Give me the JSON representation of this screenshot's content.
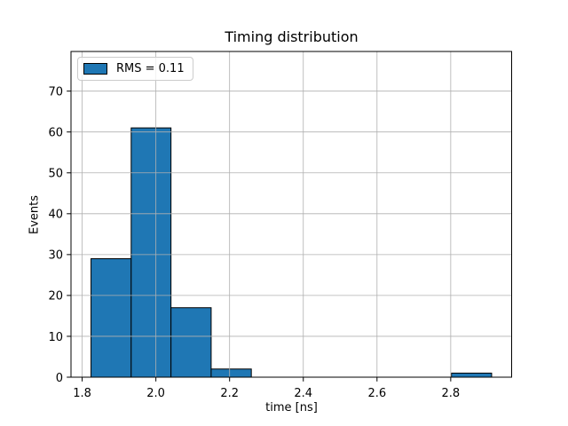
{
  "figure": {
    "background": "#ffffff"
  },
  "chart_data": {
    "type": "bar",
    "subtype": "histogram",
    "title": "Timing distribution",
    "xlabel": "time [ns]",
    "ylabel": "Events",
    "bin_edges": [
      1.824,
      1.933,
      2.041,
      2.15,
      2.259,
      2.368,
      2.476,
      2.585,
      2.694,
      2.802,
      2.911
    ],
    "counts": [
      29,
      61,
      17,
      2,
      0,
      0,
      0,
      0,
      0,
      1
    ],
    "xticks": [
      1.8,
      2.0,
      2.2,
      2.4,
      2.6,
      2.8
    ],
    "xtick_labels": [
      "1.8",
      "2.0",
      "2.2",
      "2.4",
      "2.6",
      "2.8"
    ],
    "yticks": [
      0,
      10,
      20,
      30,
      40,
      50,
      60,
      70
    ],
    "ytick_labels": [
      "0",
      "10",
      "20",
      "30",
      "40",
      "50",
      "60",
      "70"
    ],
    "xlim": [
      1.7697,
      2.9653
    ],
    "ylim": [
      0,
      79.7
    ],
    "grid": true,
    "grid_over_bars": true,
    "grid_color": "#b0b0b0",
    "bar_color": "#1f77b4",
    "bar_edge_color": "#000000",
    "spine_color": "#000000",
    "legend": {
      "label": "RMS = 0.11",
      "position": "upper left",
      "swatch_color": "#1f77b4"
    }
  }
}
